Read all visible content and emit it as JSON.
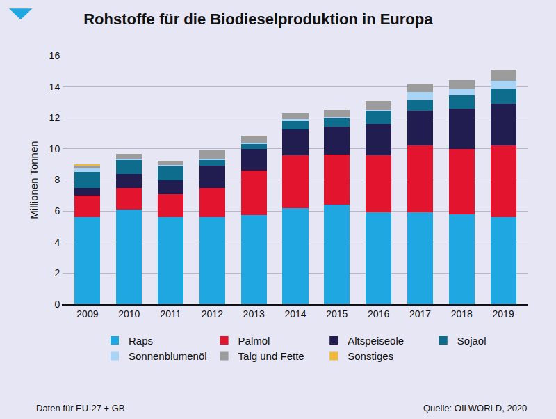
{
  "chart_data": {
    "type": "bar",
    "stacked": true,
    "title": "Rohstoffe für die Biodieselproduktion in Europa",
    "y_label": "Millionen Tonnen",
    "annotations": [
      "Daten für EU-27 + GB",
      "Quelle: OILWORLD, 2020"
    ],
    "categories": [
      "2009",
      "2010",
      "2011",
      "2012",
      "2013",
      "2014",
      "2015",
      "2016",
      "2017",
      "2018",
      "2019"
    ],
    "series": [
      {
        "name": "Raps",
        "color": "#1ea7e1",
        "values": [
          5.6,
          6.1,
          5.6,
          5.6,
          5.75,
          6.2,
          6.4,
          5.9,
          5.9,
          5.8,
          5.6
        ]
      },
      {
        "name": "Palmöl",
        "color": "#e3142d",
        "values": [
          1.4,
          1.4,
          1.5,
          1.9,
          2.85,
          3.4,
          3.25,
          3.7,
          4.3,
          4.2,
          4.6
        ]
      },
      {
        "name": "Altspeiseöle",
        "color": "#221d50",
        "values": [
          0.5,
          0.9,
          0.9,
          1.4,
          1.4,
          1.65,
          1.8,
          2.0,
          2.25,
          2.6,
          2.7
        ]
      },
      {
        "name": "Sojaöl",
        "color": "#0e6d8c",
        "values": [
          1.0,
          0.9,
          0.9,
          0.4,
          0.35,
          0.55,
          0.5,
          0.8,
          0.7,
          0.85,
          0.95
        ]
      },
      {
        "name": "Sonnenblumenöl",
        "color": "#a9d4f6",
        "values": [
          0.25,
          0.05,
          0.05,
          0.05,
          0.05,
          0.1,
          0.1,
          0.1,
          0.5,
          0.4,
          0.55
        ]
      },
      {
        "name": "Talg und Fette",
        "color": "#9c9c9c",
        "values": [
          0.15,
          0.35,
          0.3,
          0.55,
          0.45,
          0.4,
          0.45,
          0.6,
          0.55,
          0.6,
          0.7
        ]
      },
      {
        "name": "Sonstiges",
        "color": "#f0b93a",
        "values": [
          0.1,
          0,
          0,
          0,
          0,
          0,
          0,
          0,
          0,
          0,
          0
        ]
      }
    ],
    "ylim": [
      0,
      16
    ],
    "yticks": [
      0,
      2,
      4,
      6,
      8,
      10,
      12,
      14,
      16
    ],
    "grid": true,
    "legend": "bottom"
  }
}
